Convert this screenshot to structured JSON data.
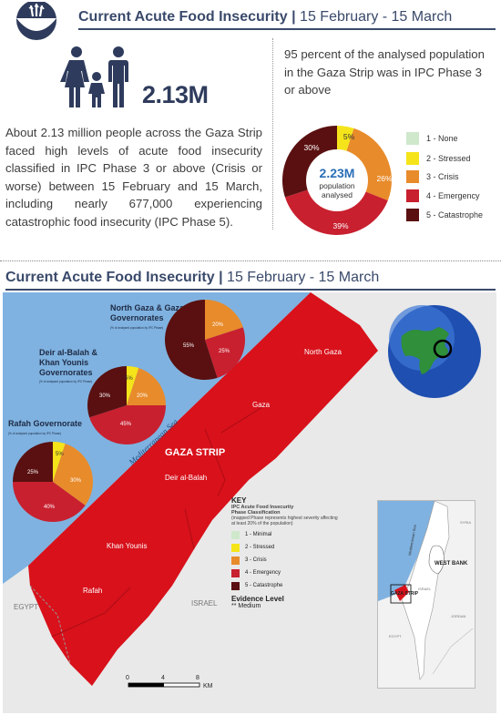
{
  "header": {
    "title": "Current Acute Food Insecurity",
    "separator": "|",
    "dates": "15 February - 15 March"
  },
  "population": {
    "figure": "2.13M"
  },
  "summary_text": "About 2.13 million people across the Gaza Strip faced high levels of acute food insecurity classified in IPC Phase 3 or above (Crisis or worse) between 15 February and 15 March, including nearly 677,000 experiencing catastrophic food insecurity (IPC Phase 5).",
  "side_text": "95 percent of the analysed population in the Gaza Strip was in IPC Phase 3 or above",
  "donut": {
    "center_value": "2.23M",
    "center_line1": "population",
    "center_line2": "analysed",
    "labels": [
      "5%",
      "26%",
      "39%",
      "30%"
    ]
  },
  "legend": [
    {
      "label": "1 - None",
      "color": "#cfe8cc"
    },
    {
      "label": "2 - Stressed",
      "color": "#f5e41a"
    },
    {
      "label": "3 - Crisis",
      "color": "#e88b2b"
    },
    {
      "label": "4 - Emergency",
      "color": "#c8202f"
    },
    {
      "label": "5 - Catastrophe",
      "color": "#5a1010"
    }
  ],
  "map_section": {
    "title": "Current Acute Food Insecurity",
    "separator": "|",
    "dates": "15 February - 15 March"
  },
  "map": {
    "sea_label": "Mediterranean Sea",
    "strip_label": "GAZA STRIP",
    "areas": [
      "North Gaza",
      "Gaza",
      "Deir al-Balah",
      "Khan Younis",
      "Rafah"
    ],
    "countries": [
      "ISRAEL",
      "EGYPT"
    ],
    "pies": [
      {
        "title_line1": "North Gaza & Gaza",
        "title_line2": "Governorates",
        "note": "(% of analysed population by IPC Phase)",
        "labels": [
          "20%",
          "25%",
          "55%"
        ]
      },
      {
        "title_line1": "Deir al-Balah &",
        "title_line2": "Khan Younis",
        "title_line3": "Governorates",
        "note": "(% of analysed population by IPC Phase)",
        "labels": [
          "5%",
          "20%",
          "45%",
          "30%"
        ]
      },
      {
        "title_line1": "Rafah Governorate",
        "note": "(% of analysed population by IPC Phase)",
        "labels": [
          "5%",
          "30%",
          "40%",
          "25%"
        ]
      }
    ],
    "key": {
      "heading": "KEY",
      "sub1": "IPC Acute Food Insecurity",
      "sub2": "Phase Classification",
      "sub3": "(mapped Phase represents highest severity affecting at least 20% of the population)",
      "items": [
        {
          "label": "1 - Minimal",
          "color": "#cfe8cc"
        },
        {
          "label": "2 - Stressed",
          "color": "#f5e41a"
        },
        {
          "label": "3 - Crisis",
          "color": "#e88b2b"
        },
        {
          "label": "4 - Emergency",
          "color": "#c8202f"
        },
        {
          "label": "5 - Catastrophe",
          "color": "#5a1010"
        }
      ],
      "evidence_heading": "Evidence Level",
      "evidence_value": "Medium",
      "evidence_marks": "**"
    },
    "scale": {
      "ticks": [
        "0",
        "4",
        "8"
      ],
      "unit": "KM"
    },
    "inset": {
      "labels": [
        "WEST BANK",
        "GAZA STRIP",
        "SYRIA",
        "ISRAEL",
        "JORDAN",
        "EGYPT",
        "Mediterranean Sea"
      ]
    }
  },
  "colors": {
    "title": "#3a4a6b",
    "sea": "#7fb2e0",
    "phase4": "#d8111b",
    "land": "#e9e9e9",
    "accent_blue": "#2a6fb7"
  }
}
